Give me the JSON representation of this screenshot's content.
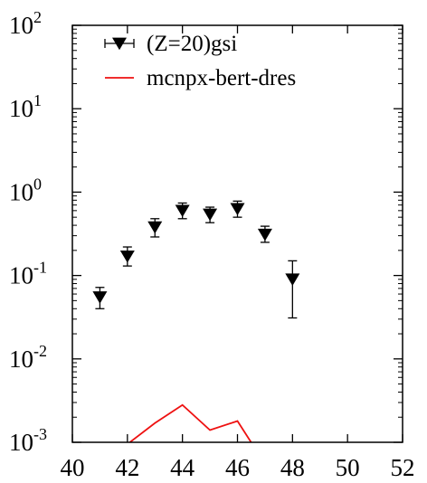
{
  "chart_data": {
    "type": "scatter",
    "title": "",
    "xlabel": "",
    "ylabel": "",
    "xlim": [
      40,
      52
    ],
    "ylim": [
      0.001,
      100
    ],
    "yscale": "log",
    "x_ticks": [
      40,
      42,
      44,
      46,
      48,
      50,
      52
    ],
    "x_tick_labels": [
      "40",
      "42",
      "44",
      "46",
      "48",
      "50",
      "52"
    ],
    "y_ticks": [
      0.001,
      0.01,
      0.1,
      1,
      10,
      100
    ],
    "y_tick_base": "10",
    "y_tick_exponents": [
      "-3",
      "-2",
      "-1",
      "0",
      "1",
      "2"
    ],
    "grid": false,
    "legend_position": "top-left",
    "series": [
      {
        "name": "(Z=20)gsi",
        "kind": "points-with-errorbars",
        "marker": "down-triangle",
        "color": "#000000",
        "points": [
          {
            "x": 41,
            "y": 0.055,
            "ylow": 0.04,
            "yhigh": 0.072
          },
          {
            "x": 42,
            "y": 0.17,
            "ylow": 0.13,
            "yhigh": 0.22
          },
          {
            "x": 43,
            "y": 0.38,
            "ylow": 0.29,
            "yhigh": 0.48
          },
          {
            "x": 44,
            "y": 0.6,
            "ylow": 0.48,
            "yhigh": 0.74
          },
          {
            "x": 45,
            "y": 0.54,
            "ylow": 0.43,
            "yhigh": 0.66
          },
          {
            "x": 46,
            "y": 0.63,
            "ylow": 0.5,
            "yhigh": 0.78
          },
          {
            "x": 47,
            "y": 0.31,
            "ylow": 0.25,
            "yhigh": 0.39
          },
          {
            "x": 48,
            "y": 0.09,
            "ylow": 0.031,
            "yhigh": 0.15
          }
        ]
      },
      {
        "name": "mcnpx-bert-dres",
        "kind": "line",
        "color": "#ee1111",
        "points": [
          {
            "x": 42,
            "y": 0.00095
          },
          {
            "x": 43,
            "y": 0.0017
          },
          {
            "x": 44,
            "y": 0.0028
          },
          {
            "x": 45,
            "y": 0.0014
          },
          {
            "x": 46,
            "y": 0.0018
          },
          {
            "x": 47,
            "y": 0.00055
          }
        ]
      }
    ]
  }
}
